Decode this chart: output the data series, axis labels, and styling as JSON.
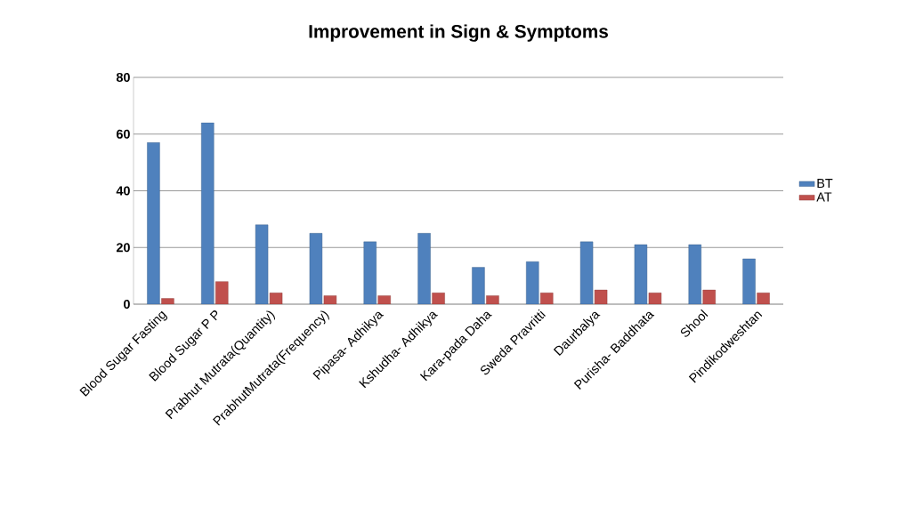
{
  "chart_data": {
    "type": "bar",
    "title": "Improvement in Sign & Symptoms",
    "categories": [
      "Blood Sugar Fasting",
      "Blood Sugar  P P",
      "Prabhut Mutrata(Quantity)",
      "PrabhutMutrata(Frequency)",
      "Pipasa- Adhikya",
      "Kshudha- Adhikya",
      "Kara-pada Daha",
      "Sweda Pravritti",
      "Daurbalya",
      "Purisha- Baddhata",
      "Shool",
      "Pindikodweshtan"
    ],
    "series": [
      {
        "name": "BT",
        "color": "#4f81bd",
        "values": [
          57,
          64,
          28,
          25,
          22,
          25,
          13,
          15,
          22,
          21,
          21,
          16
        ]
      },
      {
        "name": "AT",
        "color": "#c0504d",
        "values": [
          2,
          8,
          4,
          3,
          3,
          4,
          3,
          4,
          5,
          4,
          5,
          4
        ]
      }
    ],
    "ylim": [
      0,
      80
    ],
    "yticks": [
      0,
      20,
      40,
      60,
      80
    ],
    "grid": "y",
    "legend": "right"
  }
}
